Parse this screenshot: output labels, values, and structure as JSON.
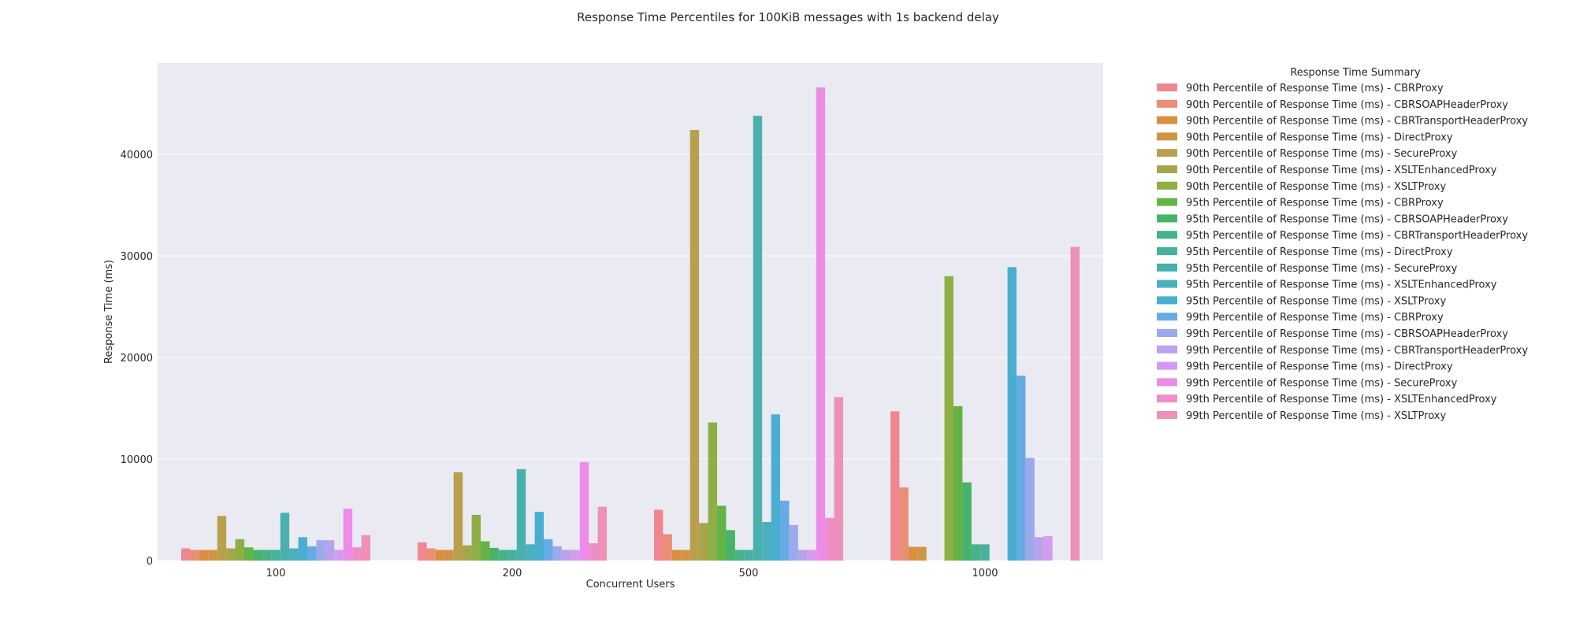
{
  "chart_data": {
    "type": "bar",
    "title": "Response Time Percentiles for 100KiB messages with 1s backend delay",
    "xlabel": "Concurrent Users",
    "ylabel": "Response Time (ms)",
    "ylim": [
      0,
      49000
    ],
    "yticks": [
      0,
      10000,
      20000,
      30000,
      40000
    ],
    "ytick_labels": [
      "0",
      "10000",
      "20000",
      "30000",
      "40000"
    ],
    "grid": true,
    "legend_title": "Response Time Summary",
    "legend_position": "outside-right",
    "categories": [
      "100",
      "200",
      "500",
      "1000"
    ],
    "series": [
      {
        "name": "90th Percentile of Response Time (ms) - CBRProxy",
        "color": "#f0868f",
        "values": [
          1200,
          1800,
          5000,
          14700
        ]
      },
      {
        "name": "90th Percentile of Response Time (ms) - CBRSOAPHeaderProxy",
        "color": "#e98e77",
        "values": [
          1050,
          1200,
          2600,
          7200
        ]
      },
      {
        "name": "90th Percentile of Response Time (ms) - CBRTransportHeaderProxy",
        "color": "#dc8e40",
        "values": [
          1050,
          1050,
          1050,
          1350
        ]
      },
      {
        "name": "90th Percentile of Response Time (ms) - DirectProxy",
        "color": "#cf9545",
        "values": [
          1050,
          1050,
          1050,
          1350
        ]
      },
      {
        "name": "90th Percentile of Response Time (ms) - SecureProxy",
        "color": "#b8a04c",
        "values": [
          4400,
          8700,
          42400,
          0
        ]
      },
      {
        "name": "90th Percentile of Response Time (ms) - XSLTEnhancedProxy",
        "color": "#a5a64a",
        "values": [
          1200,
          1500,
          3700,
          0
        ]
      },
      {
        "name": "90th Percentile of Response Time (ms) - XSLTProxy",
        "color": "#8daf44",
        "values": [
          2100,
          4500,
          13600,
          28000
        ]
      },
      {
        "name": "95th Percentile of Response Time (ms) - CBRProxy",
        "color": "#63b347",
        "values": [
          1300,
          1900,
          5400,
          15200
        ]
      },
      {
        "name": "95th Percentile of Response Time (ms) - CBRSOAPHeaderProxy",
        "color": "#46b36a",
        "values": [
          1050,
          1250,
          3000,
          7700
        ]
      },
      {
        "name": "95th Percentile of Response Time (ms) - CBRTransportHeaderProxy",
        "color": "#45b28a",
        "values": [
          1050,
          1050,
          1050,
          1600
        ]
      },
      {
        "name": "95th Percentile of Response Time (ms) - DirectProxy",
        "color": "#47b19e",
        "values": [
          1050,
          1050,
          1050,
          1600
        ]
      },
      {
        "name": "95th Percentile of Response Time (ms) - SecureProxy",
        "color": "#49b0ad",
        "values": [
          4700,
          9000,
          43800,
          0
        ]
      },
      {
        "name": "95th Percentile of Response Time (ms) - XSLTEnhancedProxy",
        "color": "#4bb0bd",
        "values": [
          1200,
          1600,
          3800,
          0
        ]
      },
      {
        "name": "95th Percentile of Response Time (ms) - XSLTProxy",
        "color": "#4aaed1",
        "values": [
          2300,
          4800,
          14400,
          28900
        ]
      },
      {
        "name": "99th Percentile of Response Time (ms) - CBRProxy",
        "color": "#68abe4",
        "values": [
          1400,
          2100,
          5900,
          18200
        ]
      },
      {
        "name": "99th Percentile of Response Time (ms) - CBRSOAPHeaderProxy",
        "color": "#9ca9ec",
        "values": [
          2000,
          1400,
          3500,
          10100
        ]
      },
      {
        "name": "99th Percentile of Response Time (ms) - CBRTransportHeaderProxy",
        "color": "#b8a2ed",
        "values": [
          2000,
          1050,
          1050,
          2300
        ]
      },
      {
        "name": "99th Percentile of Response Time (ms) - DirectProxy",
        "color": "#d49bee",
        "values": [
          1050,
          1050,
          1050,
          2400
        ]
      },
      {
        "name": "99th Percentile of Response Time (ms) - SecureProxy",
        "color": "#ec8ce8",
        "values": [
          5100,
          9700,
          46600,
          0
        ]
      },
      {
        "name": "99th Percentile of Response Time (ms) - XSLTEnhancedProxy",
        "color": "#ef8dc9",
        "values": [
          1300,
          1700,
          4200,
          0
        ]
      },
      {
        "name": "99th Percentile of Response Time (ms) - XSLTProxy",
        "color": "#ee91b6",
        "values": [
          2500,
          5300,
          16100,
          30900
        ]
      }
    ]
  }
}
